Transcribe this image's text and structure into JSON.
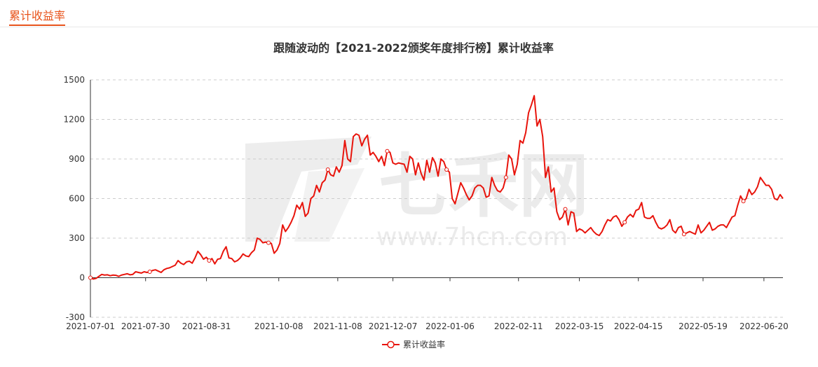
{
  "tab": {
    "title": "累计收益率"
  },
  "watermark": {
    "brand": "七禾网",
    "url": "www.7hcn.com"
  },
  "colors": {
    "accent": "#e8541c",
    "series": "#e8140c",
    "grid": "#cccccc",
    "axis": "#333333"
  },
  "chart_data": {
    "type": "line",
    "title": "跟随波动的【2021-2022颁奖年度排行榜】累计收益率",
    "ylim": [
      -300,
      1500
    ],
    "yticks": [
      -300,
      0,
      300,
      600,
      900,
      1200,
      1500
    ],
    "xticks": [
      "2021-07-01",
      "2021-07-30",
      "2021-08-31",
      "2021-10-08",
      "2021-11-08",
      "2021-12-07",
      "2022-01-06",
      "2022-02-11",
      "2022-03-15",
      "2022-04-15",
      "2022-05-19",
      "2022-06-20"
    ],
    "grid": true,
    "legend_position": "bottom-center",
    "series": [
      {
        "name": "累计收益率",
        "x_start": "2021-07-01",
        "x_end": "2022-06-30",
        "values": [
          0,
          -10,
          -5,
          10,
          25,
          20,
          22,
          15,
          20,
          18,
          10,
          20,
          25,
          30,
          22,
          25,
          45,
          40,
          35,
          45,
          40,
          45,
          55,
          60,
          50,
          40,
          60,
          70,
          75,
          85,
          95,
          130,
          110,
          100,
          120,
          125,
          110,
          150,
          200,
          175,
          140,
          155,
          130,
          145,
          105,
          140,
          145,
          200,
          235,
          150,
          145,
          120,
          130,
          150,
          180,
          165,
          160,
          190,
          210,
          300,
          290,
          265,
          270,
          265,
          260,
          185,
          210,
          260,
          400,
          350,
          380,
          420,
          470,
          550,
          520,
          570,
          465,
          490,
          600,
          620,
          700,
          650,
          720,
          740,
          820,
          780,
          770,
          840,
          800,
          850,
          1040,
          900,
          880,
          1070,
          1090,
          1080,
          1000,
          1050,
          1080,
          930,
          950,
          920,
          880,
          920,
          850,
          960,
          950,
          870,
          860,
          870,
          865,
          860,
          800,
          920,
          900,
          780,
          870,
          790,
          740,
          890,
          800,
          910,
          870,
          770,
          900,
          880,
          820,
          800,
          600,
          560,
          640,
          720,
          680,
          630,
          590,
          620,
          680,
          700,
          700,
          680,
          610,
          620,
          760,
          700,
          660,
          650,
          680,
          760,
          930,
          900,
          780,
          860,
          1040,
          1020,
          1100,
          1250,
          1310,
          1380,
          1150,
          1200,
          1070,
          760,
          840,
          650,
          680,
          500,
          440,
          460,
          520,
          400,
          500,
          490,
          350,
          370,
          360,
          340,
          360,
          380,
          350,
          330,
          320,
          350,
          400,
          440,
          430,
          460,
          470,
          440,
          390,
          420,
          460,
          480,
          460,
          510,
          520,
          570,
          460,
          450,
          450,
          470,
          420,
          380,
          370,
          380,
          400,
          440,
          360,
          340,
          380,
          390,
          330,
          340,
          350,
          340,
          330,
          400,
          340,
          360,
          390,
          420,
          360,
          370,
          390,
          400,
          400,
          380,
          420,
          460,
          470,
          550,
          620,
          580,
          600,
          670,
          630,
          650,
          690,
          760,
          730,
          700,
          700,
          670,
          600,
          590,
          630,
          600
        ]
      }
    ]
  }
}
